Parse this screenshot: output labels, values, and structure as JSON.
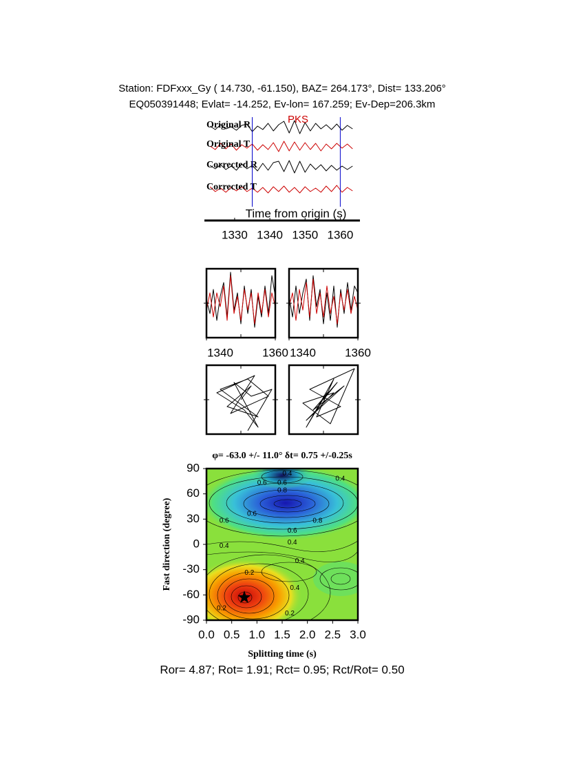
{
  "header": {
    "station": "Station: FDFxxx_Gy (  14.730,  -61.150), BAZ=  264.173°, Dist=  133.206°",
    "event": "EQ050391448; Evlat= -14.252, Ev-lon= 167.259; Ev-Dep=206.3km"
  },
  "footer": "Ror= 4.87; Rot= 1.91; Rct= 0.95; Rct/Rot= 0.50",
  "chart_data": [
    {
      "type": "traces",
      "annotation": "PKS",
      "annotation_x": 1348,
      "x_label": "Time from origin (s)",
      "xlim": [
        1322,
        1365
      ],
      "xticks": [
        1330,
        1340,
        1350,
        1360
      ],
      "markers": [
        1335,
        1360
      ],
      "marker_color": "#0000cc",
      "x": [
        1323,
        1324.5,
        1326,
        1327.5,
        1329,
        1330.5,
        1332,
        1333.5,
        1335,
        1336.5,
        1338,
        1339.5,
        1341,
        1342.5,
        1344,
        1345.5,
        1347,
        1348.5,
        1350,
        1351.5,
        1353,
        1354.5,
        1356,
        1357.5,
        1359,
        1360.5,
        1362,
        1363.5
      ],
      "series": [
        {
          "name": "Original R",
          "color": "#000000",
          "values": [
            0.2,
            -0.3,
            0.4,
            -0.2,
            0.1,
            -0.4,
            0.3,
            0.5,
            -0.6,
            0.2,
            -0.3,
            0.6,
            -0.5,
            0.4,
            0.9,
            -0.8,
            1.0,
            -0.9,
            0.7,
            -0.5,
            0.6,
            -0.2,
            0.4,
            -0.3,
            0.5,
            -0.4,
            0.3,
            -0.2
          ]
        },
        {
          "name": "Original T",
          "color": "#cc0000",
          "values": [
            0.1,
            -0.4,
            0.5,
            -0.3,
            0.4,
            -0.5,
            0.3,
            -0.2,
            0.4,
            -0.5,
            0.3,
            -0.4,
            0.6,
            -0.7,
            0.8,
            -0.6,
            0.7,
            -0.5,
            0.6,
            -0.4,
            0.5,
            -0.6,
            0.4,
            -0.3,
            0.5,
            -0.2,
            0.4,
            -0.3
          ]
        },
        {
          "name": "Corrected R",
          "color": "#000000",
          "values": [
            0.3,
            -0.2,
            0.4,
            -0.3,
            0.2,
            -0.4,
            0.5,
            -0.2,
            0.3,
            -0.5,
            0.6,
            -0.4,
            0.7,
            0.9,
            -0.6,
            1.0,
            -0.8,
            0.9,
            -0.7,
            0.5,
            -0.3,
            0.4,
            -0.5,
            0.3,
            -0.4,
            0.2,
            -0.3,
            0.2
          ]
        },
        {
          "name": "Corrected T",
          "color": "#cc0000",
          "values": [
            0.4,
            -0.3,
            0.2,
            -0.4,
            0.3,
            -0.2,
            0.4,
            -0.3,
            0.2,
            -0.4,
            0.3,
            -0.5,
            0.4,
            -0.3,
            0.5,
            -0.4,
            0.3,
            -0.5,
            0.4,
            -0.3,
            0.2,
            -0.4,
            0.5,
            -0.3,
            0.6,
            -0.4,
            0.3,
            -0.2
          ]
        }
      ]
    },
    {
      "type": "line",
      "xlim": [
        1340,
        1360
      ],
      "xticks": [
        1340,
        1360
      ],
      "ylim": [
        -1,
        1
      ],
      "x": [
        1340,
        1341,
        1342,
        1343,
        1344,
        1345,
        1346,
        1347,
        1348,
        1349,
        1350,
        1351,
        1352,
        1353,
        1354,
        1355,
        1356,
        1357,
        1358,
        1359,
        1360
      ],
      "series": [
        {
          "color": "#000000",
          "values": [
            0.1,
            -0.3,
            0.4,
            -0.5,
            0.2,
            0.6,
            -0.4,
            0.9,
            -0.2,
            0.3,
            -0.6,
            0.5,
            -0.3,
            0.4,
            -0.7,
            0.2,
            -0.4,
            0.5,
            -0.3,
            0.8,
            0.2
          ]
        },
        {
          "color": "#cc0000",
          "values": [
            -0.2,
            0.3,
            -0.4,
            0.3,
            -0.1,
            0.5,
            -0.5,
            0.8,
            -0.3,
            0.2,
            -0.5,
            0.4,
            -0.2,
            0.3,
            -0.6,
            0.3,
            -0.3,
            0.4,
            -0.4,
            0.3,
            -0.1
          ]
        }
      ]
    },
    {
      "type": "line",
      "xlim": [
        1340,
        1360
      ],
      "xticks": [
        1340,
        1360
      ],
      "ylim": [
        -1,
        1
      ],
      "x": [
        1340,
        1341,
        1342,
        1343,
        1344,
        1345,
        1346,
        1347,
        1348,
        1349,
        1350,
        1351,
        1352,
        1353,
        1354,
        1355,
        1356,
        1357,
        1358,
        1359,
        1360
      ],
      "series": [
        {
          "color": "#000000",
          "values": [
            0.2,
            -0.4,
            0.5,
            -0.3,
            0.3,
            0.7,
            -0.5,
            0.8,
            -0.1,
            0.4,
            -0.6,
            0.3,
            -0.5,
            0.5,
            -0.7,
            0.4,
            -0.3,
            0.6,
            -0.2,
            0.5,
            0.3
          ]
        },
        {
          "color": "#cc0000",
          "values": [
            -0.1,
            0.3,
            -0.5,
            0.4,
            -0.2,
            0.6,
            -0.4,
            0.7,
            -0.3,
            0.3,
            -0.4,
            0.5,
            -0.3,
            0.2,
            -0.6,
            0.3,
            -0.2,
            0.4,
            -0.3,
            0.2,
            -0.2
          ]
        }
      ]
    },
    {
      "type": "motion",
      "xlim": [
        -1,
        1
      ],
      "ylim": [
        -1,
        1
      ],
      "x": [
        0,
        0.3,
        -0.4,
        0.5,
        -0.6,
        0.2,
        0.8,
        -0.3,
        0.4,
        -0.7,
        0.1,
        0.5,
        -0.2,
        0.3,
        0.9,
        0.2
      ],
      "values": [
        0,
        0.4,
        -0.2,
        -0.5,
        0.3,
        0.6,
        0.1,
        -0.4,
        0.7,
        0.2,
        -0.3,
        -0.8,
        0.5,
        0.1,
        0.3,
        -0.9
      ],
      "color": "#000000"
    },
    {
      "type": "motion",
      "xlim": [
        -1,
        1
      ],
      "ylim": [
        -1,
        1
      ],
      "x": [
        0,
        0.4,
        -0.3,
        0.6,
        -0.5,
        0.3,
        -0.6,
        0.2,
        0.9,
        -0.4,
        0.5,
        -0.2,
        0.3,
        -0.5,
        0.1,
        0
      ],
      "values": [
        0,
        0.5,
        -0.3,
        0.4,
        -0.6,
        0.2,
        -0.1,
        -0.7,
        0.9,
        0.3,
        -0.2,
        -0.5,
        0.6,
        -0.8,
        0.2,
        0
      ],
      "color": "#000000"
    },
    {
      "type": "contour",
      "title": "φ= -63.0 +/- 11.0° δt= 0.75 +/-0.25s",
      "x_label": "Splitting time (s)",
      "y_label": "Fast direction (degree)",
      "xlim": [
        0,
        3
      ],
      "ylim": [
        -90,
        90
      ],
      "xticks": [
        {
          "value": 0,
          "label": "0.0"
        },
        0.5,
        {
          "value": 1,
          "label": "1.0"
        },
        1.5,
        {
          "value": 2,
          "label": "2.0"
        },
        2.5,
        {
          "value": 3,
          "label": "3.0"
        }
      ],
      "yticks": [
        90,
        60,
        30,
        0,
        -30,
        -60,
        -90
      ],
      "best": {
        "x": 0.75,
        "y": -63
      },
      "contour_labels": [
        {
          "value": 0.4,
          "x": 1.6,
          "y": 84
        },
        {
          "value": 0.6,
          "x": 1.1,
          "y": 73
        },
        {
          "value": 0.6,
          "x": 1.5,
          "y": 73
        },
        {
          "value": 0.8,
          "x": 1.5,
          "y": 64
        },
        {
          "value": 0.4,
          "x": 2.65,
          "y": 78
        },
        {
          "value": 0.6,
          "x": 0.9,
          "y": 36
        },
        {
          "value": 0.6,
          "x": 0.35,
          "y": 28
        },
        {
          "value": 0.8,
          "x": 2.2,
          "y": 28
        },
        {
          "value": 0.6,
          "x": 1.7,
          "y": 16
        },
        {
          "value": 0.4,
          "x": 1.7,
          "y": 2
        },
        {
          "value": 0.4,
          "x": 0.35,
          "y": -2
        },
        {
          "value": 0.4,
          "x": 1.85,
          "y": -20
        },
        {
          "value": 0.2,
          "x": 0.85,
          "y": -34
        },
        {
          "value": 0.4,
          "x": 1.75,
          "y": -52
        },
        {
          "value": 0.2,
          "x": 0.3,
          "y": -76
        },
        {
          "value": 0.2,
          "x": 1.65,
          "y": -82
        }
      ]
    }
  ]
}
